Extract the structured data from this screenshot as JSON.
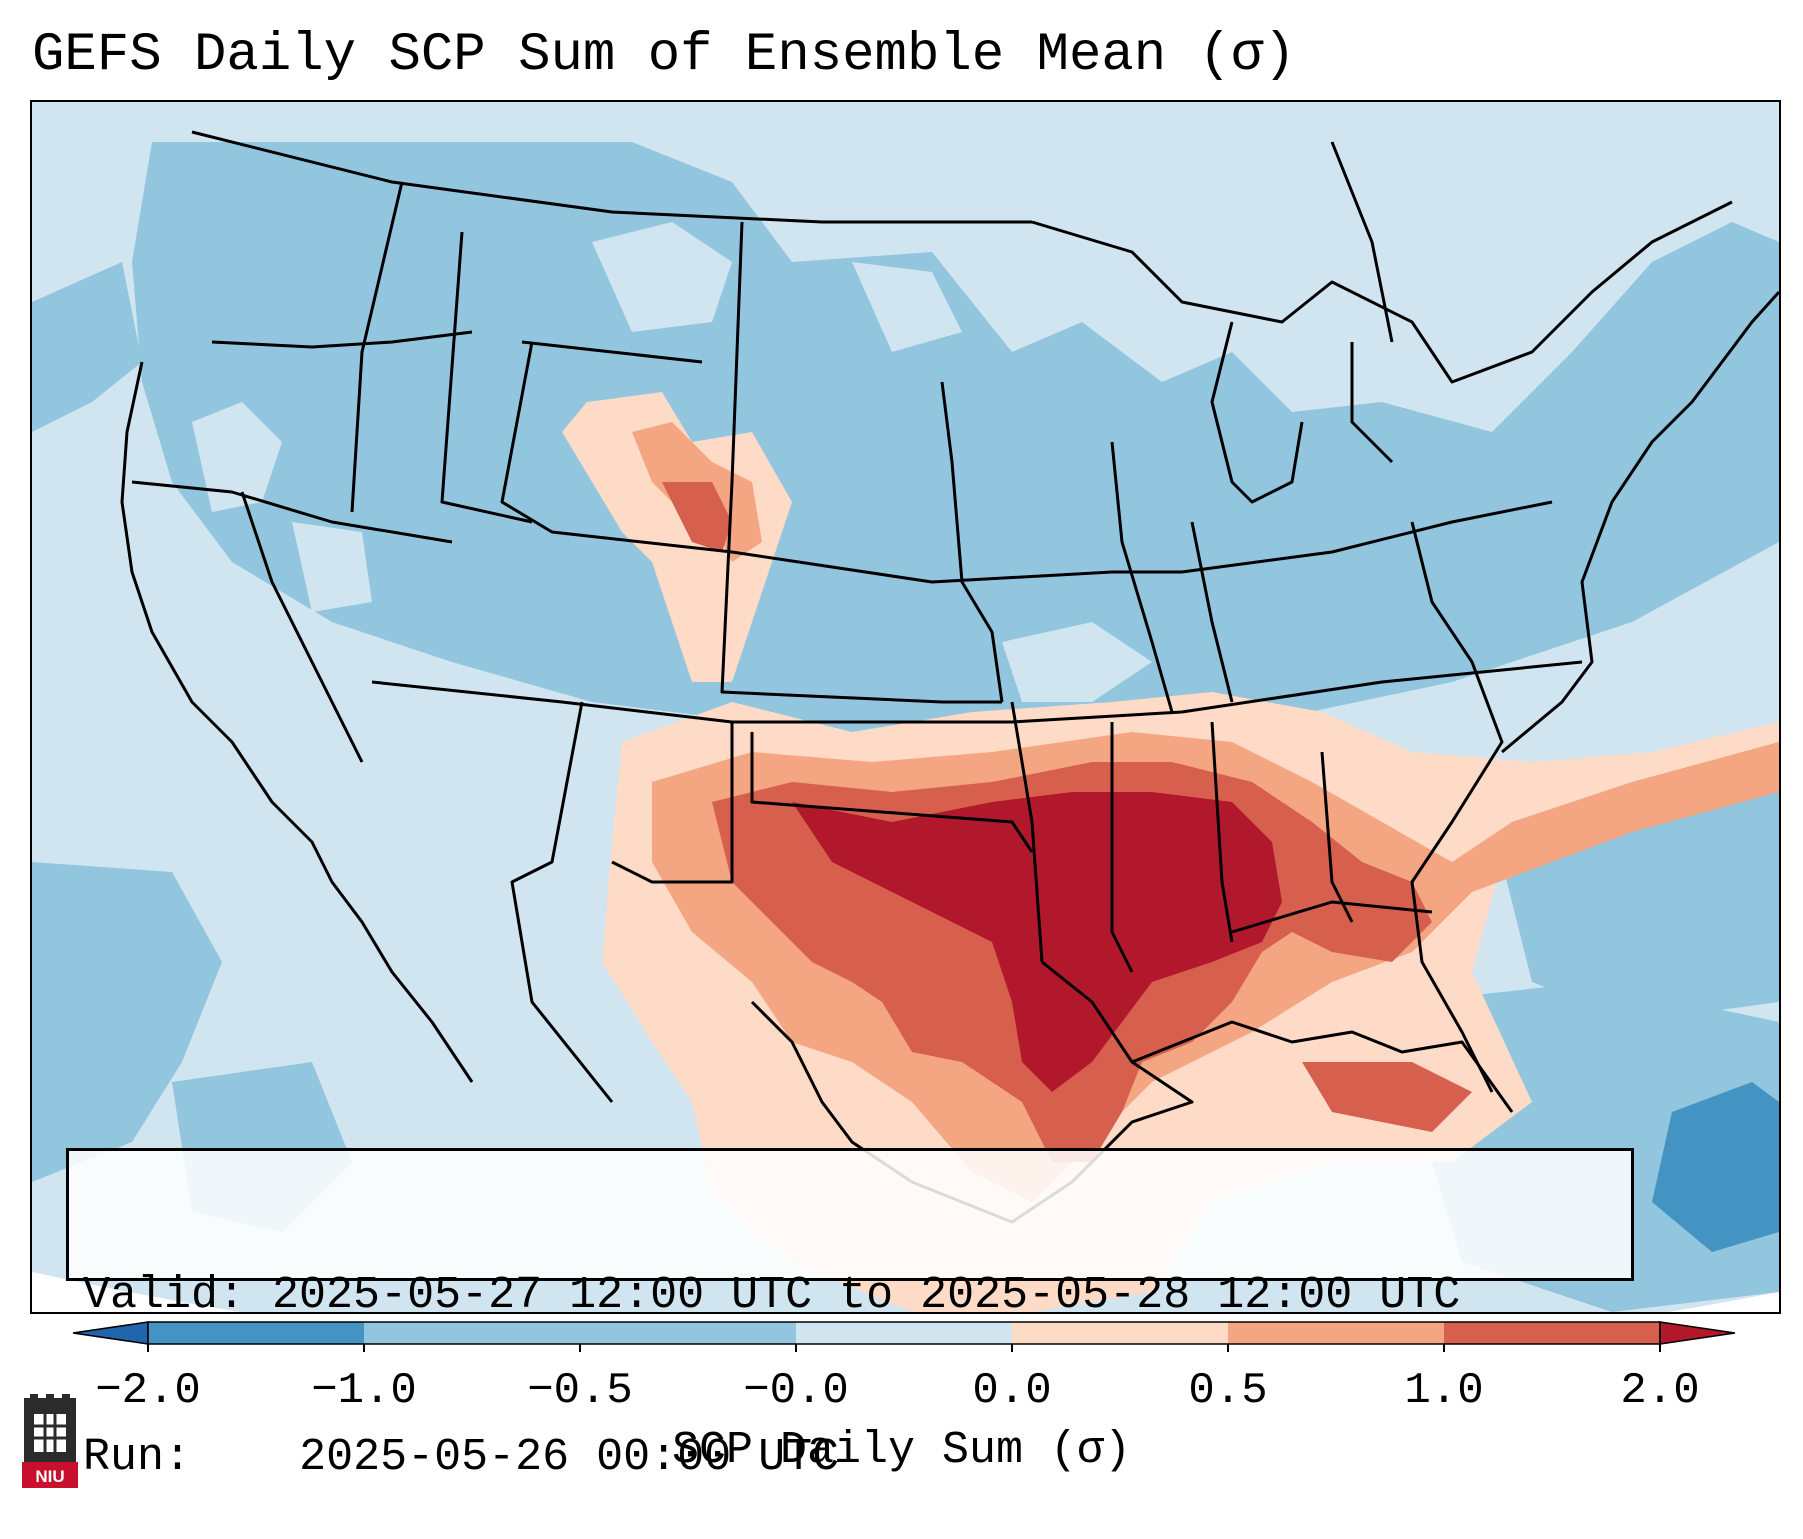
{
  "title": "GEFS Daily SCP Sum of Ensemble Mean (σ)",
  "info": {
    "valid_label": "Valid:",
    "valid_value": "2025-05-27 12:00 UTC to 2025-05-28 12:00 UTC",
    "run_label": "Run:",
    "run_value": "2025-05-26 00:00 UTC"
  },
  "colorbar": {
    "label": "SCP Daily Sum (σ)",
    "ticks": [
      "−2.0",
      "−1.0",
      "−0.5",
      "−0.0",
      "0.0",
      "0.5",
      "1.0",
      "2.0"
    ],
    "bins": [
      {
        "color": "#4393c3"
      },
      {
        "color": "#92c5de"
      },
      {
        "color": "#92c5de"
      },
      {
        "color": "#d1e5f0"
      },
      {
        "color": "#fddbc7"
      },
      {
        "color": "#f4a582"
      },
      {
        "color": "#d6604d"
      }
    ],
    "under_color": "#2166ac",
    "over_color": "#b2182b"
  },
  "legend_colors": {
    "strong_neg": "#4393c3",
    "neg": "#92c5de",
    "neutral_neg": "#d1e5f0",
    "neutral_pos": "#fddbc7",
    "pos": "#f4a582",
    "strong_pos": "#d6604d",
    "extreme_pos": "#b2182b"
  },
  "logo_text": "NIU"
}
